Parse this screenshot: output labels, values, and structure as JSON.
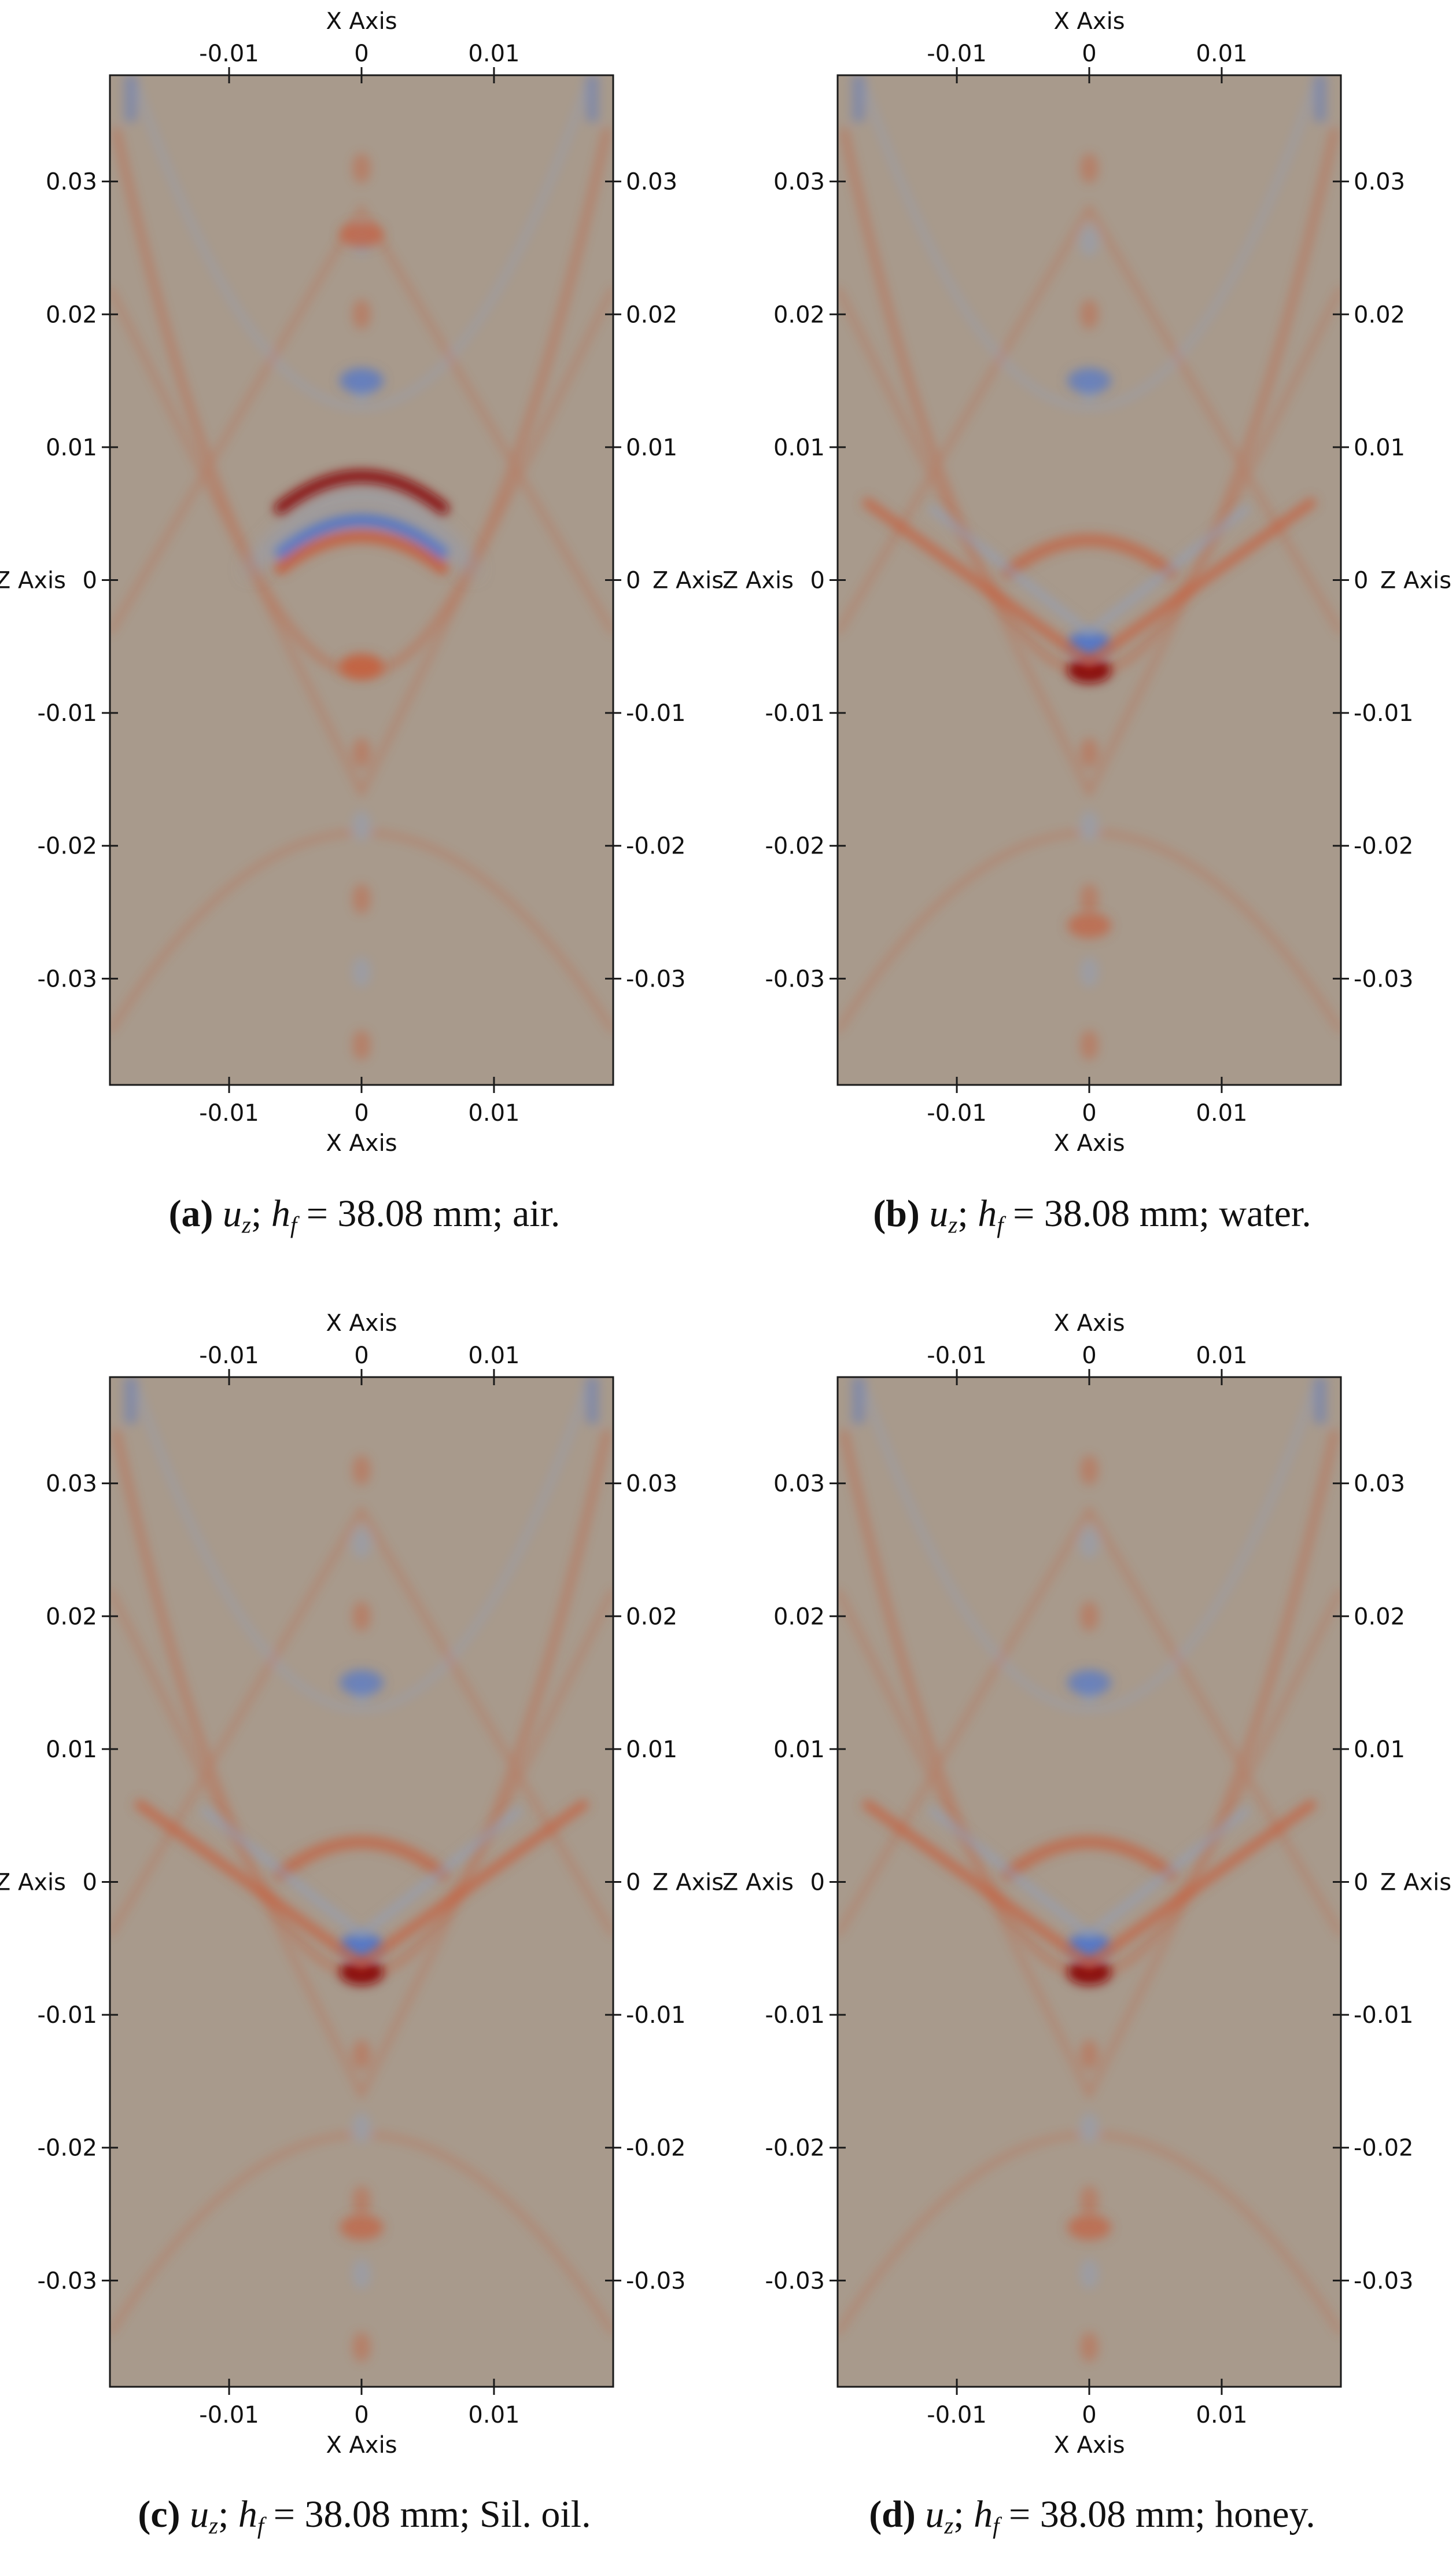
{
  "colors": {
    "background_field": "#a89a8c",
    "positive_strong": "#8a0c0c",
    "positive": "#c5603e",
    "negative": "#5477c6",
    "negative_light": "#8fa0bf",
    "axis_line": "#1a1a1a"
  },
  "axes": {
    "x_axis_label": "X Axis",
    "z_axis_label": "Z Axis",
    "x_ticks": [
      "-0.01",
      "0",
      "0.01"
    ],
    "z_ticks": [
      "0.03",
      "0.02",
      "0.01",
      "0",
      "-0.01",
      "-0.02",
      "-0.03"
    ]
  },
  "panels": [
    {
      "id": "a",
      "caption": {
        "letter": "(a)",
        "var": "u",
        "var_sub": "z",
        "h": "h",
        "h_sub": "f",
        "eq": "=",
        "value": "38.08 mm;",
        "medium": "air."
      },
      "field": {
        "type": "heatmap",
        "x_range": [
          -0.019,
          0.019
        ],
        "z_range": [
          -0.038,
          0.038
        ],
        "features": [
          {
            "kind": "arc",
            "x": 0.0,
            "z": 0.0045,
            "sign": -1,
            "strength": 1.0
          },
          {
            "kind": "arc",
            "x": 0.0,
            "z": 0.0078,
            "sign": 1,
            "strength": 1.0
          },
          {
            "kind": "arc",
            "x": 0.0,
            "z": 0.0033,
            "sign": 1,
            "strength": 0.85
          },
          {
            "kind": "spot",
            "x": 0.0,
            "z": -0.0065,
            "sign": 1,
            "strength": 0.8
          },
          {
            "kind": "spot",
            "x": 0.0,
            "z": 0.015,
            "sign": -1,
            "strength": 0.6
          },
          {
            "kind": "spot",
            "x": 0.0,
            "z": 0.026,
            "sign": 1,
            "strength": 0.6
          }
        ]
      }
    },
    {
      "id": "b",
      "caption": {
        "letter": "(b)",
        "var": "u",
        "var_sub": "z",
        "h": "h",
        "h_sub": "f",
        "eq": "=",
        "value": "38.08 mm;",
        "medium": "water."
      },
      "field": {
        "type": "heatmap",
        "x_range": [
          -0.019,
          0.019
        ],
        "z_range": [
          -0.038,
          0.038
        ],
        "features": [
          {
            "kind": "spot",
            "x": 0.0,
            "z": -0.0068,
            "sign": 1,
            "strength": 1.0
          },
          {
            "kind": "spot",
            "x": 0.0,
            "z": -0.0048,
            "sign": -1,
            "strength": 0.9
          },
          {
            "kind": "arc",
            "x": 0.0,
            "z": 0.003,
            "sign": 1,
            "strength": 0.55
          },
          {
            "kind": "spot",
            "x": 0.0,
            "z": 0.015,
            "sign": -1,
            "strength": 0.5
          },
          {
            "kind": "spot",
            "x": 0.0,
            "z": -0.026,
            "sign": 1,
            "strength": 0.5
          }
        ]
      }
    },
    {
      "id": "c",
      "caption": {
        "letter": "(c)",
        "var": "u",
        "var_sub": "z",
        "h": "h",
        "h_sub": "f",
        "eq": "=",
        "value": "38.08 mm;",
        "medium": "Sil. oil."
      },
      "field": {
        "type": "heatmap",
        "x_range": [
          -0.019,
          0.019
        ],
        "z_range": [
          -0.038,
          0.038
        ],
        "features": [
          {
            "kind": "spot",
            "x": 0.0,
            "z": -0.0068,
            "sign": 1,
            "strength": 1.0
          },
          {
            "kind": "spot",
            "x": 0.0,
            "z": -0.0048,
            "sign": -1,
            "strength": 0.9
          },
          {
            "kind": "arc",
            "x": 0.0,
            "z": 0.003,
            "sign": 1,
            "strength": 0.55
          },
          {
            "kind": "spot",
            "x": 0.0,
            "z": 0.015,
            "sign": -1,
            "strength": 0.5
          },
          {
            "kind": "spot",
            "x": 0.0,
            "z": -0.026,
            "sign": 1,
            "strength": 0.5
          }
        ]
      }
    },
    {
      "id": "d",
      "caption": {
        "letter": "(d)",
        "var": "u",
        "var_sub": "z",
        "h": "h",
        "h_sub": "f",
        "eq": "=",
        "value": "38.08 mm;",
        "medium": "honey."
      },
      "field": {
        "type": "heatmap",
        "x_range": [
          -0.019,
          0.019
        ],
        "z_range": [
          -0.038,
          0.038
        ],
        "features": [
          {
            "kind": "spot",
            "x": 0.0,
            "z": -0.0068,
            "sign": 1,
            "strength": 1.0
          },
          {
            "kind": "spot",
            "x": 0.0,
            "z": -0.0048,
            "sign": -1,
            "strength": 0.9
          },
          {
            "kind": "arc",
            "x": 0.0,
            "z": 0.003,
            "sign": 1,
            "strength": 0.55
          },
          {
            "kind": "spot",
            "x": 0.0,
            "z": 0.015,
            "sign": -1,
            "strength": 0.5
          },
          {
            "kind": "spot",
            "x": 0.0,
            "z": -0.026,
            "sign": 1,
            "strength": 0.5
          }
        ]
      }
    }
  ]
}
